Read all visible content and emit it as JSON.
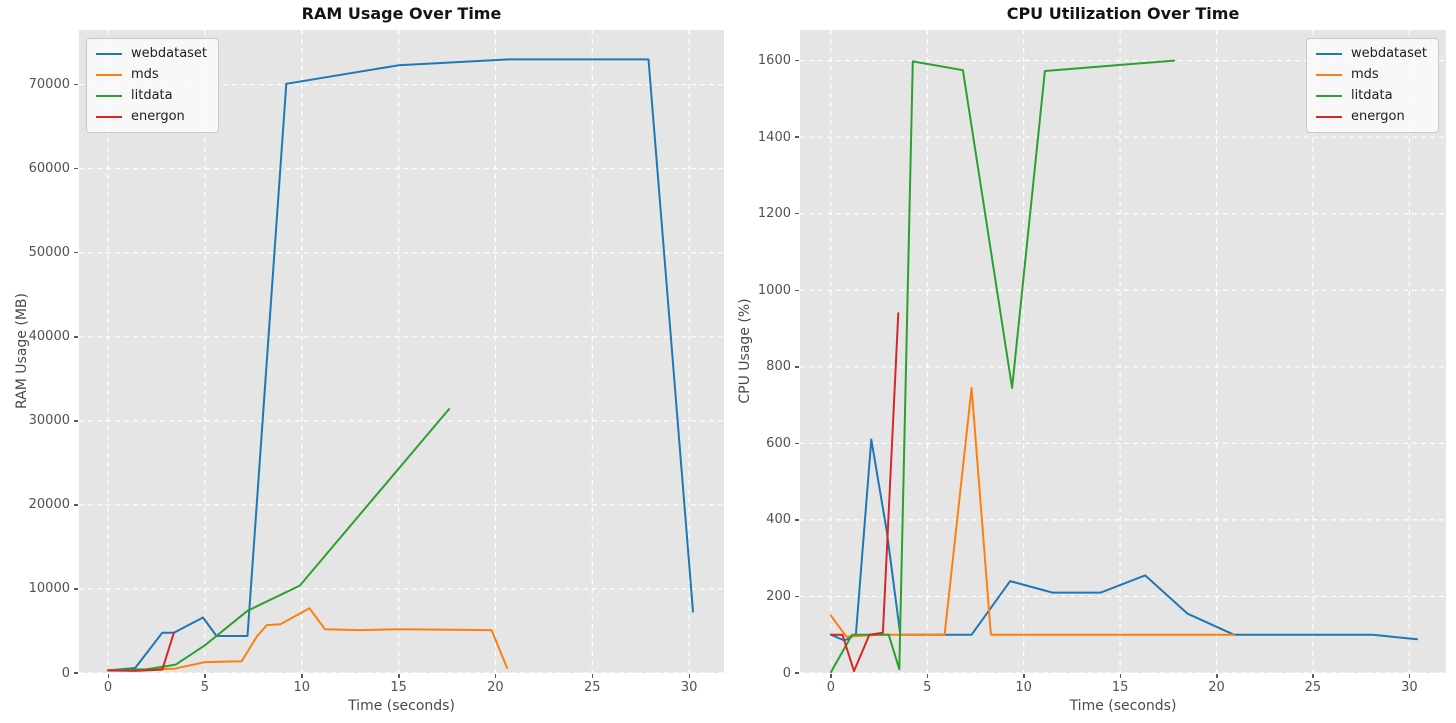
{
  "figure": {
    "background": "#ffffff",
    "plot_background": "#e5e5e5",
    "grid_color": "#ffffff",
    "tick_color": "#525252",
    "title_color": "#141414",
    "axis_label_color": "#4a4a4a",
    "legend_background": "#fafafa",
    "legend_border": "#c9c9c9"
  },
  "legend": {
    "entries": [
      "webdataset",
      "mds",
      "litdata",
      "energon"
    ],
    "colors": [
      "#1f77b4",
      "#ff7f0e",
      "#2ca02c",
      "#d62728"
    ]
  },
  "chart_data": [
    {
      "type": "line",
      "title": "RAM Usage Over Time",
      "xlabel": "Time (seconds)",
      "ylabel": "RAM Usage (MB)",
      "xlim": [
        -1.5,
        31.8
      ],
      "ylim": [
        0,
        76500
      ],
      "xticks": [
        0,
        5,
        10,
        15,
        20,
        25,
        30
      ],
      "yticks": [
        0,
        10000,
        20000,
        30000,
        40000,
        50000,
        60000,
        70000
      ],
      "grid": "white-dashed",
      "legend_position": "top-left",
      "series": [
        {
          "name": "webdataset",
          "color": "#1f77b4",
          "points": [
            [
              0,
              300
            ],
            [
              1.4,
              600
            ],
            [
              2.8,
              4800
            ],
            [
              3.4,
              4800
            ],
            [
              4.9,
              6600
            ],
            [
              5.6,
              4400
            ],
            [
              7.2,
              4400
            ],
            [
              9.2,
              70100
            ],
            [
              15,
              72300
            ],
            [
              20.7,
              73000
            ],
            [
              27.9,
              73000
            ],
            [
              30.2,
              7300
            ]
          ]
        },
        {
          "name": "mds",
          "color": "#ff7f0e",
          "points": [
            [
              0,
              300
            ],
            [
              3.4,
              500
            ],
            [
              5,
              1300
            ],
            [
              6.9,
              1400
            ],
            [
              7.7,
              4400
            ],
            [
              8.2,
              5700
            ],
            [
              8.9,
              5800
            ],
            [
              10.4,
              7700
            ],
            [
              11.2,
              5200
            ],
            [
              13,
              5100
            ],
            [
              15,
              5200
            ],
            [
              19.8,
              5100
            ],
            [
              20.6,
              600
            ]
          ]
        },
        {
          "name": "litdata",
          "color": "#2ca02c",
          "points": [
            [
              0,
              350
            ],
            [
              2,
              450
            ],
            [
              3.5,
              1000
            ],
            [
              5,
              3300
            ],
            [
              7.2,
              7400
            ],
            [
              9.9,
              10400
            ],
            [
              17.6,
              31400
            ]
          ]
        },
        {
          "name": "energon",
          "color": "#d62728",
          "points": [
            [
              0,
              300
            ],
            [
              1.4,
              250
            ],
            [
              2.8,
              400
            ],
            [
              3.4,
              4800
            ]
          ]
        }
      ]
    },
    {
      "type": "line",
      "title": "CPU Utilization Over Time",
      "xlabel": "Time (seconds)",
      "ylabel": "CPU Usage (%)",
      "xlim": [
        -1.6,
        31.9
      ],
      "ylim": [
        0,
        1680
      ],
      "xticks": [
        0,
        5,
        10,
        15,
        20,
        25,
        30
      ],
      "yticks": [
        0,
        200,
        400,
        600,
        800,
        1000,
        1200,
        1400,
        1600
      ],
      "grid": "white-dashed",
      "legend_position": "top-right",
      "series": [
        {
          "name": "webdataset",
          "color": "#1f77b4",
          "points": [
            [
              0,
              100
            ],
            [
              0.7,
              85
            ],
            [
              1.3,
              100
            ],
            [
              2.1,
              610
            ],
            [
              2.9,
              370
            ],
            [
              3.6,
              100
            ],
            [
              7.3,
              100
            ],
            [
              9.3,
              240
            ],
            [
              11.5,
              210
            ],
            [
              14,
              210
            ],
            [
              16.3,
              255
            ],
            [
              18.5,
              155
            ],
            [
              20.9,
              100
            ],
            [
              28.1,
              100
            ],
            [
              30.4,
              88
            ]
          ]
        },
        {
          "name": "mds",
          "color": "#ff7f0e",
          "points": [
            [
              0,
              150
            ],
            [
              0.8,
              95
            ],
            [
              2.5,
              100
            ],
            [
              5.9,
              100
            ],
            [
              7.3,
              745
            ],
            [
              8.3,
              100
            ],
            [
              20.9,
              100
            ]
          ]
        },
        {
          "name": "litdata",
          "color": "#2ca02c",
          "points": [
            [
              0,
              2
            ],
            [
              1.1,
              100
            ],
            [
              3,
              100
            ],
            [
              3.55,
              10
            ],
            [
              4.25,
              1598
            ],
            [
              6.85,
              1575
            ],
            [
              9.4,
              745
            ],
            [
              11.1,
              1573
            ],
            [
              17.8,
              1600
            ]
          ]
        },
        {
          "name": "energon",
          "color": "#d62728",
          "points": [
            [
              0,
              100
            ],
            [
              0.6,
              100
            ],
            [
              1.2,
              5
            ],
            [
              2,
              100
            ],
            [
              2.7,
              105
            ],
            [
              3.5,
              940
            ]
          ]
        }
      ]
    }
  ]
}
